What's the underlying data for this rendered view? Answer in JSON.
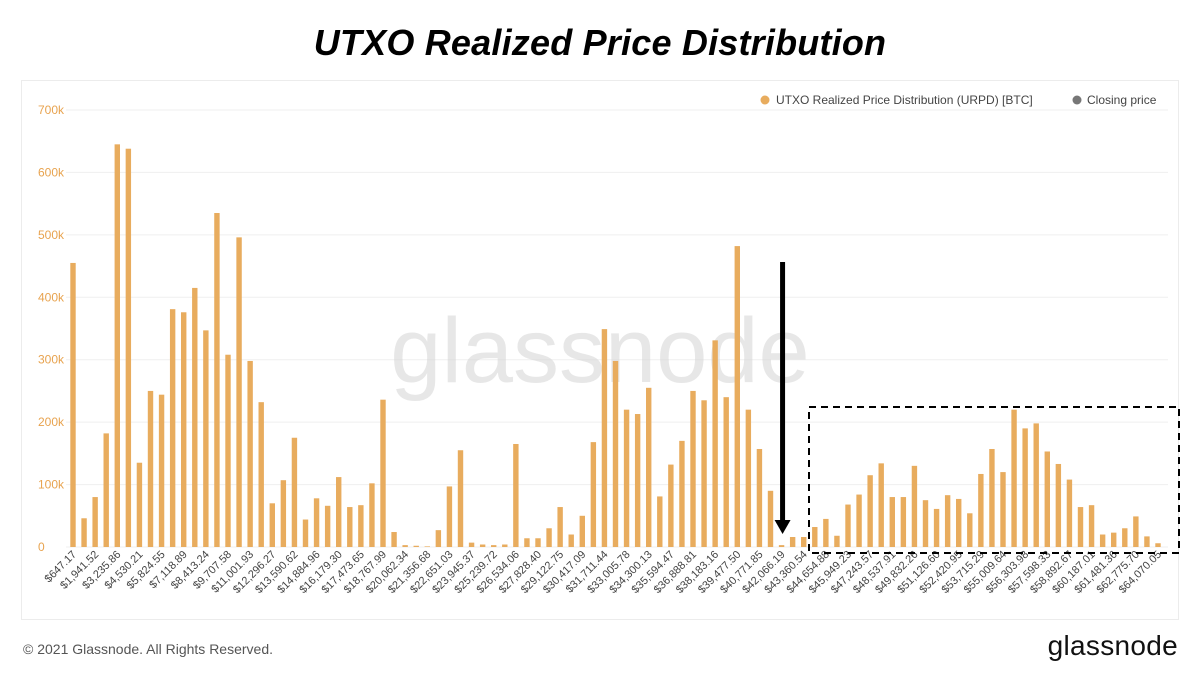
{
  "title": "UTXO Realized Price Distribution",
  "watermark": "glassnode",
  "footer": {
    "copyright": "© 2021 Glassnode. All Rights Reserved.",
    "brand": "glassnode"
  },
  "colors": {
    "bar": "#E8AC5E",
    "closing_price": "#777777",
    "grid": "#efefef",
    "axis_text": "#e8a34f",
    "tick_text": "#444444",
    "annotation": "#000000"
  },
  "chart_data": {
    "type": "bar",
    "title": "UTXO Realized Price Distribution",
    "xlabel": "",
    "ylabel": "",
    "ylim": [
      0,
      700000
    ],
    "yticks": [
      0,
      100000,
      200000,
      300000,
      400000,
      500000,
      600000,
      700000
    ],
    "ytick_labels": [
      "0",
      "100k",
      "200k",
      "300k",
      "400k",
      "500k",
      "600k",
      "700k"
    ],
    "grid": true,
    "legend_position": "top-right",
    "legend": [
      {
        "label": "UTXO Realized Price Distribution (URPD) [BTC]",
        "color": "#E8AC5E"
      },
      {
        "label": "Closing price",
        "color": "#777777"
      }
    ],
    "xtick_labels": [
      "$647.17",
      "$1,941.52",
      "$3,235.86",
      "$4,530.21",
      "$5,824.55",
      "$7,118.89",
      "$8,413.24",
      "$9,707.58",
      "$11,001.93",
      "$12,296.27",
      "$13,590.62",
      "$14,884.96",
      "$16,179.30",
      "$17,473.65",
      "$18,767.99",
      "$20,062.34",
      "$21,356.68",
      "$22,651.03",
      "$23,945.37",
      "$25,239.72",
      "$26,534.06",
      "$27,828.40",
      "$29,122.75",
      "$30,417.09",
      "$31,711.44",
      "$33,005.78",
      "$34,300.13",
      "$35,594.47",
      "$36,888.81",
      "$38,183.16",
      "$39,477.50",
      "$40,771.85",
      "$42,066.19",
      "$43,360.54",
      "$44,654.88",
      "$45,949.23",
      "$47,243.57",
      "$48,537.91",
      "$49,832.26",
      "$51,126.60",
      "$52,420.95",
      "$53,715.29",
      "$55,009.64",
      "$56,303.98",
      "$57,598.33",
      "$58,892.67",
      "$60,187.01",
      "$61,481.36",
      "$62,775.70",
      "$64,070.05"
    ],
    "series": [
      {
        "name": "UTXO Realized Price Distribution (URPD) [BTC]",
        "values": [
          455000,
          46000,
          80000,
          182000,
          645000,
          638000,
          135000,
          250000,
          244000,
          381000,
          376000,
          415000,
          347000,
          535000,
          308000,
          496000,
          298000,
          232000,
          70000,
          107000,
          175000,
          44000,
          78000,
          66000,
          112000,
          64000,
          67000,
          102000,
          236000,
          24000,
          3000,
          2000,
          1000,
          27000,
          97000,
          155000,
          7000,
          4000,
          3000,
          4000,
          165000,
          14000,
          14000,
          30000,
          64000,
          20000,
          50000,
          168000,
          349000,
          298000,
          220000,
          213000,
          255000,
          81000,
          132000,
          170000,
          250000,
          235000,
          331000,
          240000,
          482000,
          220000,
          157000,
          90000,
          3000,
          16000,
          16000,
          32000,
          45000,
          18000,
          68000,
          84000,
          115000,
          134000,
          80000,
          80000,
          130000,
          75000,
          61000,
          83000,
          77000,
          54000,
          117000,
          157000,
          120000,
          220000,
          190000,
          198000,
          153000,
          133000,
          108000,
          64000,
          67000,
          20000,
          23000,
          30000,
          49000,
          17000,
          6000
        ]
      }
    ],
    "closing_price_label": "$42,066.19",
    "annotations": [
      {
        "type": "arrow",
        "pointing_to": "$42,066.19"
      },
      {
        "type": "dashed-box",
        "covers_range": [
          "$43,360.54",
          "$64,070.05"
        ]
      }
    ]
  }
}
